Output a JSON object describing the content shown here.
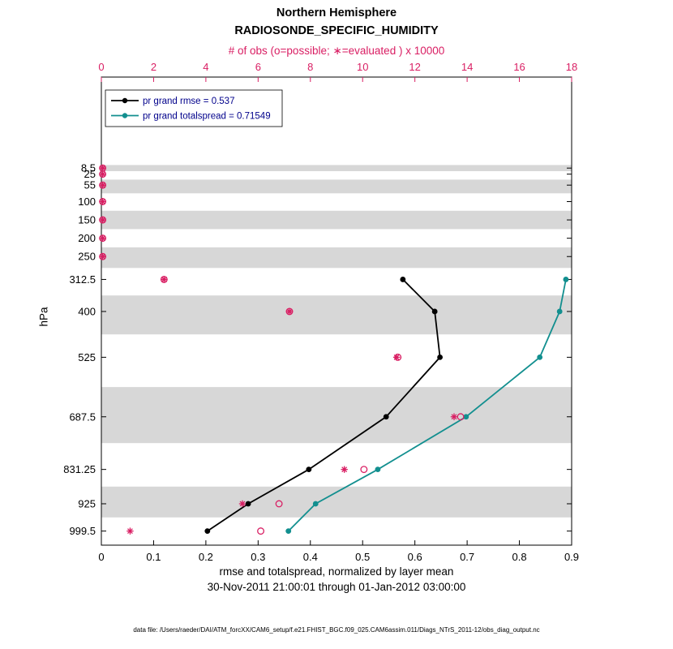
{
  "header": {
    "region_title": "Northern Hemisphere",
    "variable_title": "RADIOSONDE_SPECIFIC_HUMIDITY",
    "obs_axis_label": "# of obs (o=possible; ∗=evaluated ) x 10000"
  },
  "footer": {
    "xlabel": "rmse and totalspread, normalized by layer mean",
    "timespan": "30-Nov-2011 21:00:01 through 01-Jan-2012 03:00:00",
    "datafile": "data file: /Users/raeder/DAI/ATM_forcXX/CAM6_setup/f.e21.FHIST_BGC.f09_025.CAM6assim.011/Diags_NTrS_2011-12/obs_diag_output.nc"
  },
  "chart_data": {
    "type": "line",
    "title": "Northern Hemisphere RADIOSONDE_SPECIFIC_HUMIDITY",
    "xlabel": "rmse and totalspread, normalized by layer mean",
    "top_xlabel": "# of obs (o=possible; ∗=evaluated ) x 10000",
    "ylabel": "hPa",
    "xlim": [
      0,
      0.9
    ],
    "xtick_values": [
      0,
      0.1,
      0.2,
      0.3,
      0.4,
      0.5,
      0.6,
      0.7,
      0.8,
      0.9
    ],
    "xtick_labels": [
      "0",
      "0.1",
      "0.2",
      "0.3",
      "0.4",
      "0.5",
      "0.6",
      "0.7",
      "0.8",
      "0.9"
    ],
    "obs_xlim": [
      0,
      18
    ],
    "obs_xtick_values": [
      0,
      2,
      4,
      6,
      8,
      10,
      12,
      14,
      16,
      18
    ],
    "obs_xtick_labels": [
      "0",
      "2",
      "4",
      "6",
      "8",
      "10",
      "12",
      "14",
      "16",
      "18"
    ],
    "y_levels": [
      8.5,
      25,
      55,
      100,
      150,
      200,
      250,
      312.5,
      400,
      525,
      687.5,
      831.25,
      925,
      999.5
    ],
    "y_tick_labels": [
      "8.5",
      "25",
      "55",
      "100",
      "150",
      "200",
      "250",
      "312.5",
      "400",
      "525",
      "687.5",
      "831.25",
      "925",
      "999.5"
    ],
    "y_display_range": [
      -240,
      1038
    ],
    "grid": false,
    "shaded_band_color": "#d7d7d7",
    "legend": {
      "position": "top-left-inside",
      "text_color": "#00008b",
      "entries": [
        "pr grand rmse = 0.537",
        "pr grand totalspread = 0.71549"
      ]
    },
    "series": [
      {
        "name": "pr grand rmse = 0.537",
        "color": "#000000",
        "marker": "filled-circle",
        "x_axis": "bottom",
        "levels": [
          312.5,
          400,
          525,
          687.5,
          831.25,
          925,
          999.5
        ],
        "values": [
          0.577,
          0.638,
          0.648,
          0.545,
          0.397,
          0.281,
          0.203
        ]
      },
      {
        "name": "pr grand totalspread = 0.71549",
        "color": "#128f8f",
        "marker": "filled-circle",
        "x_axis": "bottom",
        "levels": [
          312.5,
          400,
          525,
          687.5,
          831.25,
          925,
          999.5
        ],
        "values": [
          0.889,
          0.877,
          0.839,
          0.698,
          0.529,
          0.41,
          0.358
        ]
      }
    ],
    "obs_counts_x10000": {
      "color": "#d91e63",
      "axis": "top",
      "evaluated_marker": "asterisk",
      "possible_marker": "open-circle",
      "levels": [
        8.5,
        25,
        55,
        100,
        150,
        200,
        250,
        312.5,
        400,
        525,
        687.5,
        831.25,
        925,
        999.5
      ],
      "evaluated": [
        0.05,
        0.05,
        0.05,
        0.05,
        0.05,
        0.05,
        0.05,
        2.4,
        7.2,
        11.3,
        13.5,
        9.3,
        5.4,
        1.1
      ],
      "possible": [
        0.05,
        0.05,
        0.05,
        0.05,
        0.05,
        0.05,
        0.05,
        2.4,
        7.2,
        11.35,
        13.75,
        10.05,
        6.8,
        6.1
      ]
    }
  }
}
